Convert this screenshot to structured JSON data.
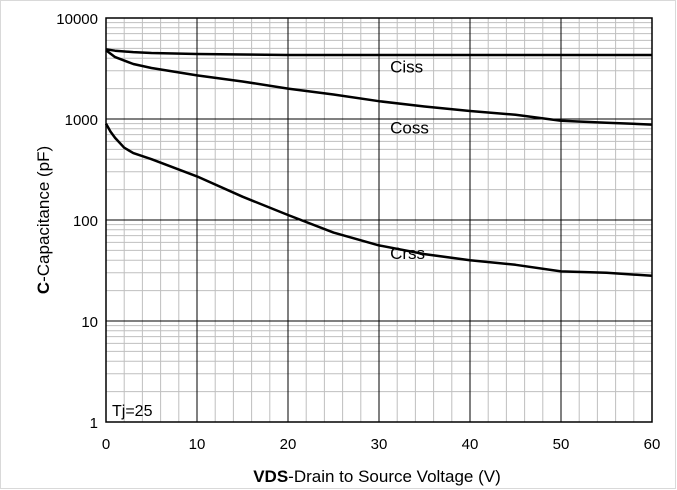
{
  "chart_data": {
    "type": "line",
    "xlabel_bold": "VDS",
    "xlabel_rest": "-Drain to Source Voltage (V)",
    "ylabel_bold": "C",
    "ylabel_rest": "-Capacitance (pF)",
    "xlim": [
      0,
      60
    ],
    "ylim": [
      1,
      10000
    ],
    "y_scale": "log",
    "x_ticks": [
      0,
      10,
      20,
      30,
      40,
      50,
      60
    ],
    "x_tick_labels": [
      "0",
      "10",
      "20",
      "30",
      "40",
      "50",
      "60"
    ],
    "y_ticks": [
      1,
      10,
      100,
      1000,
      10000
    ],
    "y_tick_labels": [
      "1",
      "10",
      "100",
      "1000",
      "10000"
    ],
    "grid": true,
    "annotation": "Tj=25",
    "series": [
      {
        "name": "Ciss",
        "x": [
          0,
          1,
          3,
          5,
          10,
          15,
          20,
          25,
          30,
          35,
          40,
          45,
          50,
          55,
          60
        ],
        "y": [
          4900,
          4750,
          4600,
          4500,
          4400,
          4350,
          4300,
          4300,
          4300,
          4300,
          4300,
          4300,
          4300,
          4300,
          4300
        ]
      },
      {
        "name": "Coss",
        "x": [
          0,
          1,
          3,
          5,
          10,
          15,
          20,
          25,
          30,
          35,
          40,
          45,
          50,
          55,
          60
        ],
        "y": [
          4800,
          4100,
          3500,
          3200,
          2700,
          2350,
          2000,
          1750,
          1500,
          1330,
          1200,
          1100,
          960,
          920,
          880
        ]
      },
      {
        "name": "Crss",
        "x": [
          0,
          0.5,
          1,
          2,
          3,
          5,
          10,
          15,
          20,
          25,
          30,
          35,
          40,
          45,
          50,
          55,
          60
        ],
        "y": [
          900,
          750,
          650,
          520,
          460,
          400,
          270,
          170,
          112,
          75,
          56,
          46,
          40,
          36,
          31,
          30,
          28
        ]
      }
    ],
    "series_label_positions": [
      {
        "name": "Ciss",
        "x": 31,
        "y": 3300
      },
      {
        "name": "Coss",
        "x": 31,
        "y": 820
      },
      {
        "name": "Crss",
        "x": 31,
        "y": 47
      }
    ]
  }
}
